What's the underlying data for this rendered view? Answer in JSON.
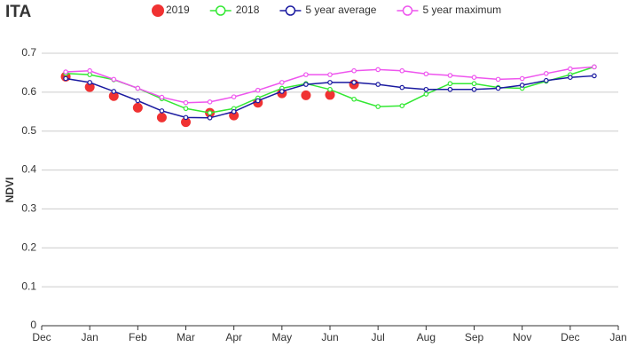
{
  "chart_data": {
    "type": "line",
    "title": "ITA",
    "y_label": "NDVI",
    "x": [
      0.5,
      1,
      1.5,
      2,
      2.5,
      3,
      3.5,
      4,
      4.5,
      5,
      5.5,
      6,
      6.5,
      7,
      7.5,
      8,
      8.5,
      9,
      9.5,
      10,
      10.5,
      11,
      11.5
    ],
    "xlim": [
      0,
      12
    ],
    "xticks": [
      {
        "value": 0,
        "label": "Dec"
      },
      {
        "value": 1,
        "label": "Jan"
      },
      {
        "value": 2,
        "label": "Feb"
      },
      {
        "value": 3,
        "label": "Mar"
      },
      {
        "value": 4,
        "label": "Apr"
      },
      {
        "value": 5,
        "label": "May"
      },
      {
        "value": 6,
        "label": "Jun"
      },
      {
        "value": 7,
        "label": "Jul"
      },
      {
        "value": 8,
        "label": "Aug"
      },
      {
        "value": 9,
        "label": "Sep"
      },
      {
        "value": 10,
        "label": "Nov"
      },
      {
        "value": 11,
        "label": "Dec"
      },
      {
        "value": 12,
        "label": "Jan"
      }
    ],
    "ylim": [
      0,
      0.7
    ],
    "yticks": [
      0,
      0.1,
      0.2,
      0.3,
      0.4,
      0.5,
      0.6,
      0.7
    ],
    "grid": true,
    "legend": "top",
    "series": [
      {
        "name": "2019",
        "color": "#f03232",
        "mode": "markers",
        "values": [
          0.64,
          0.613,
          0.59,
          0.56,
          0.535,
          0.523,
          0.547,
          0.54,
          0.573,
          0.597,
          0.592,
          0.593,
          0.62,
          null,
          null,
          null,
          null,
          null,
          null,
          null,
          null,
          null,
          null
        ]
      },
      {
        "name": "2018",
        "color": "#33e833",
        "mode": "lines",
        "values": [
          0.648,
          0.645,
          0.632,
          0.61,
          0.583,
          0.558,
          0.547,
          0.558,
          0.585,
          0.61,
          0.622,
          0.607,
          0.582,
          0.563,
          0.565,
          0.595,
          0.622,
          0.622,
          0.612,
          0.61,
          0.628,
          0.645,
          0.665
        ]
      },
      {
        "name": "5 year average",
        "color": "#1a1aa0",
        "mode": "lines",
        "values": [
          0.635,
          0.625,
          0.602,
          0.578,
          0.552,
          0.535,
          0.534,
          0.55,
          0.578,
          0.602,
          0.62,
          0.625,
          0.625,
          0.62,
          0.612,
          0.607,
          0.607,
          0.607,
          0.61,
          0.618,
          0.63,
          0.638,
          0.642
        ]
      },
      {
        "name": "5 year maximum",
        "color": "#ee55ee",
        "mode": "lines",
        "values": [
          0.652,
          0.655,
          0.633,
          0.61,
          0.587,
          0.573,
          0.575,
          0.588,
          0.605,
          0.625,
          0.645,
          0.645,
          0.655,
          0.658,
          0.655,
          0.647,
          0.643,
          0.638,
          0.633,
          0.635,
          0.648,
          0.66,
          0.665
        ]
      }
    ]
  }
}
